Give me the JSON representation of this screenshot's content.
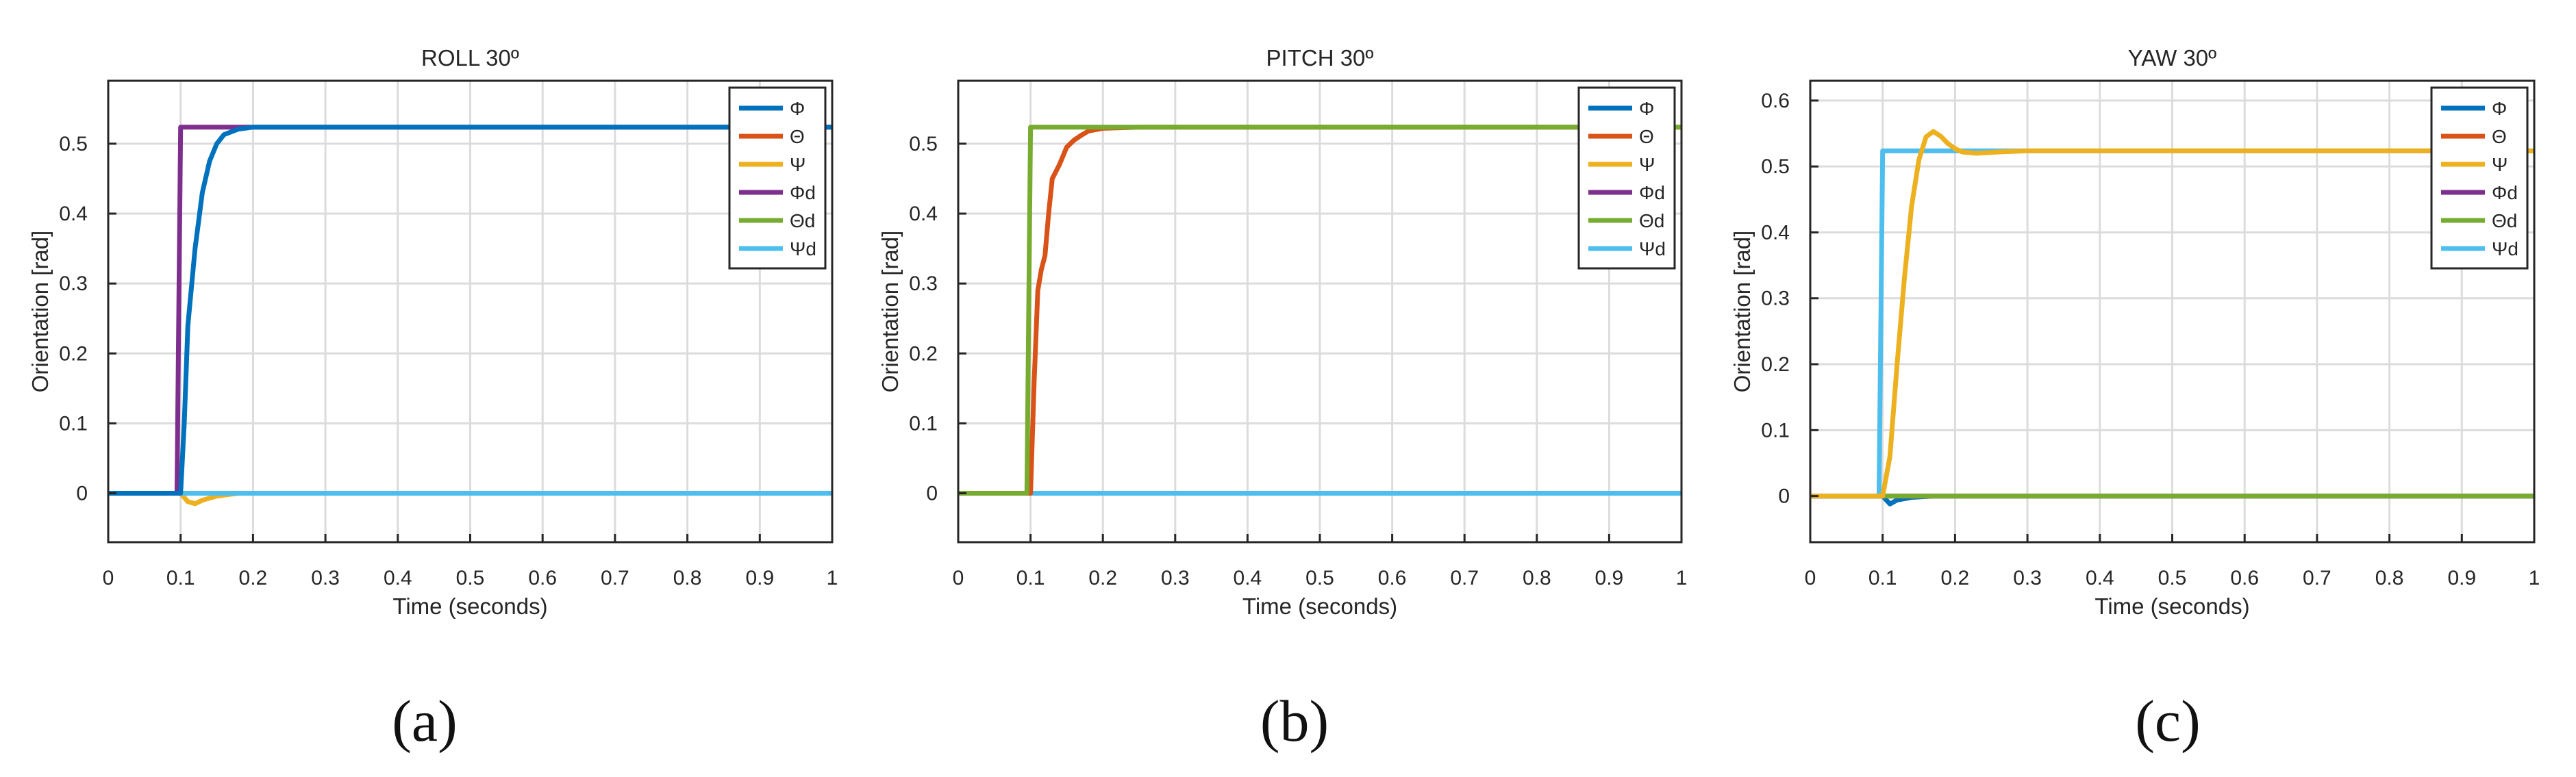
{
  "figure": {
    "panel_labels": [
      "(a)",
      "(b)",
      "(c)"
    ]
  },
  "legend_entries": [
    "Φ",
    "Θ",
    "Ψ",
    "Φd",
    "Θd",
    "Ψd"
  ],
  "series_colors": {
    "Φ": "#0072BD",
    "Θ": "#D95319",
    "Ψ": "#EDB120",
    "Φd": "#7E2F8E",
    "Θd": "#77AC30",
    "Ψd": "#4DBEEE"
  },
  "chart_data": [
    {
      "type": "line",
      "title": "ROLL 30º",
      "xlabel": "Time (seconds)",
      "ylabel": "Orientation [rad]",
      "xlim": [
        0,
        1
      ],
      "ylim": [
        -0.07,
        0.59
      ],
      "xticks": [
        0,
        0.1,
        0.2,
        0.3,
        0.4,
        0.5,
        0.6,
        0.7,
        0.8,
        0.9,
        1
      ],
      "xtick_labels": [
        "0",
        "0.1",
        "0.2",
        "0.3",
        "0.4",
        "0.5",
        "0.6",
        "0.7",
        "0.8",
        "0.9",
        "1"
      ],
      "yticks": [
        0,
        0.1,
        0.2,
        0.3,
        0.4,
        0.5
      ],
      "ytick_labels": [
        "0",
        "0.1",
        "0.2",
        "0.3",
        "0.4",
        "0.5"
      ],
      "grid": true,
      "legend_position": "top-right",
      "series": [
        {
          "name": "Θ",
          "x": [
            0,
            1
          ],
          "y": [
            0,
            0
          ]
        },
        {
          "name": "Ψ",
          "x": [
            0,
            0.1,
            0.11,
            0.12,
            0.13,
            0.15,
            0.18,
            1
          ],
          "y": [
            0,
            0,
            -0.012,
            -0.015,
            -0.01,
            -0.004,
            0,
            0
          ]
        },
        {
          "name": "Θd",
          "x": [
            0,
            1
          ],
          "y": [
            0,
            0
          ]
        },
        {
          "name": "Ψd",
          "x": [
            0,
            1
          ],
          "y": [
            0,
            0
          ]
        },
        {
          "name": "Φd",
          "x": [
            0,
            0.095,
            0.1,
            1
          ],
          "y": [
            0,
            0,
            0.5236,
            0.5236
          ]
        },
        {
          "name": "Φ",
          "x": [
            0,
            0.1,
            0.105,
            0.11,
            0.12,
            0.13,
            0.14,
            0.15,
            0.16,
            0.18,
            0.2,
            0.25,
            1
          ],
          "y": [
            0,
            0,
            0.1,
            0.24,
            0.35,
            0.43,
            0.475,
            0.5,
            0.513,
            0.521,
            0.5236,
            0.5236,
            0.5236
          ]
        }
      ]
    },
    {
      "type": "line",
      "title": "PITCH 30º",
      "xlabel": "Time (seconds)",
      "ylabel": "Orientation [rad]",
      "xlim": [
        0,
        1
      ],
      "ylim": [
        -0.07,
        0.59
      ],
      "xticks": [
        0,
        0.1,
        0.2,
        0.3,
        0.4,
        0.5,
        0.6,
        0.7,
        0.8,
        0.9,
        1
      ],
      "xtick_labels": [
        "0",
        "0.1",
        "0.2",
        "0.3",
        "0.4",
        "0.5",
        "0.6",
        "0.7",
        "0.8",
        "0.9",
        "1"
      ],
      "yticks": [
        0,
        0.1,
        0.2,
        0.3,
        0.4,
        0.5
      ],
      "ytick_labels": [
        "0",
        "0.1",
        "0.2",
        "0.3",
        "0.4",
        "0.5"
      ],
      "grid": true,
      "legend_position": "top-right",
      "series": [
        {
          "name": "Φ",
          "x": [
            0,
            1
          ],
          "y": [
            0,
            0
          ]
        },
        {
          "name": "Ψ",
          "x": [
            0,
            1
          ],
          "y": [
            0,
            0
          ]
        },
        {
          "name": "Φd",
          "x": [
            0,
            1
          ],
          "y": [
            0,
            0
          ]
        },
        {
          "name": "Ψd",
          "x": [
            0,
            1
          ],
          "y": [
            0,
            0
          ]
        },
        {
          "name": "Θ",
          "x": [
            0,
            0.1,
            0.105,
            0.11,
            0.115,
            0.12,
            0.125,
            0.13,
            0.14,
            0.15,
            0.16,
            0.17,
            0.18,
            0.2,
            0.25,
            1
          ],
          "y": [
            0,
            0,
            0.16,
            0.29,
            0.32,
            0.34,
            0.4,
            0.45,
            0.47,
            0.495,
            0.505,
            0.512,
            0.518,
            0.522,
            0.5236,
            0.5236
          ]
        },
        {
          "name": "Θd",
          "x": [
            0,
            0.095,
            0.1,
            1
          ],
          "y": [
            0,
            0,
            0.5236,
            0.5236
          ]
        }
      ]
    },
    {
      "type": "line",
      "title": "YAW 30º",
      "xlabel": "Time (seconds)",
      "ylabel": "Orientation [rad]",
      "xlim": [
        0,
        1
      ],
      "ylim": [
        -0.07,
        0.63
      ],
      "xticks": [
        0,
        0.1,
        0.2,
        0.3,
        0.4,
        0.5,
        0.6,
        0.7,
        0.8,
        0.9,
        1
      ],
      "xtick_labels": [
        "0",
        "0.1",
        "0.2",
        "0.3",
        "0.4",
        "0.5",
        "0.6",
        "0.7",
        "0.8",
        "0.9",
        "1"
      ],
      "yticks": [
        0,
        0.1,
        0.2,
        0.3,
        0.4,
        0.5,
        0.6
      ],
      "ytick_labels": [
        "0",
        "0.1",
        "0.2",
        "0.3",
        "0.4",
        "0.5",
        "0.6"
      ],
      "grid": true,
      "legend_position": "top-right",
      "series": [
        {
          "name": "Φ",
          "x": [
            0,
            0.1,
            0.11,
            0.12,
            0.14,
            0.17,
            0.2,
            1
          ],
          "y": [
            0,
            0,
            -0.012,
            -0.006,
            -0.002,
            0,
            0,
            0
          ]
        },
        {
          "name": "Θ",
          "x": [
            0,
            1
          ],
          "y": [
            0,
            0
          ]
        },
        {
          "name": "Φd",
          "x": [
            0,
            1
          ],
          "y": [
            0,
            0
          ]
        },
        {
          "name": "Θd",
          "x": [
            0,
            1
          ],
          "y": [
            0,
            0
          ]
        },
        {
          "name": "Ψd",
          "x": [
            0,
            0.095,
            0.1,
            1
          ],
          "y": [
            0,
            0,
            0.5236,
            0.5236
          ]
        },
        {
          "name": "Ψ",
          "x": [
            0,
            0.1,
            0.11,
            0.12,
            0.13,
            0.14,
            0.15,
            0.16,
            0.17,
            0.18,
            0.19,
            0.2,
            0.21,
            0.23,
            0.26,
            0.3,
            1
          ],
          "y": [
            0,
            0,
            0.06,
            0.2,
            0.33,
            0.44,
            0.51,
            0.545,
            0.553,
            0.546,
            0.535,
            0.527,
            0.522,
            0.52,
            0.522,
            0.5236,
            0.5236
          ]
        }
      ]
    }
  ]
}
